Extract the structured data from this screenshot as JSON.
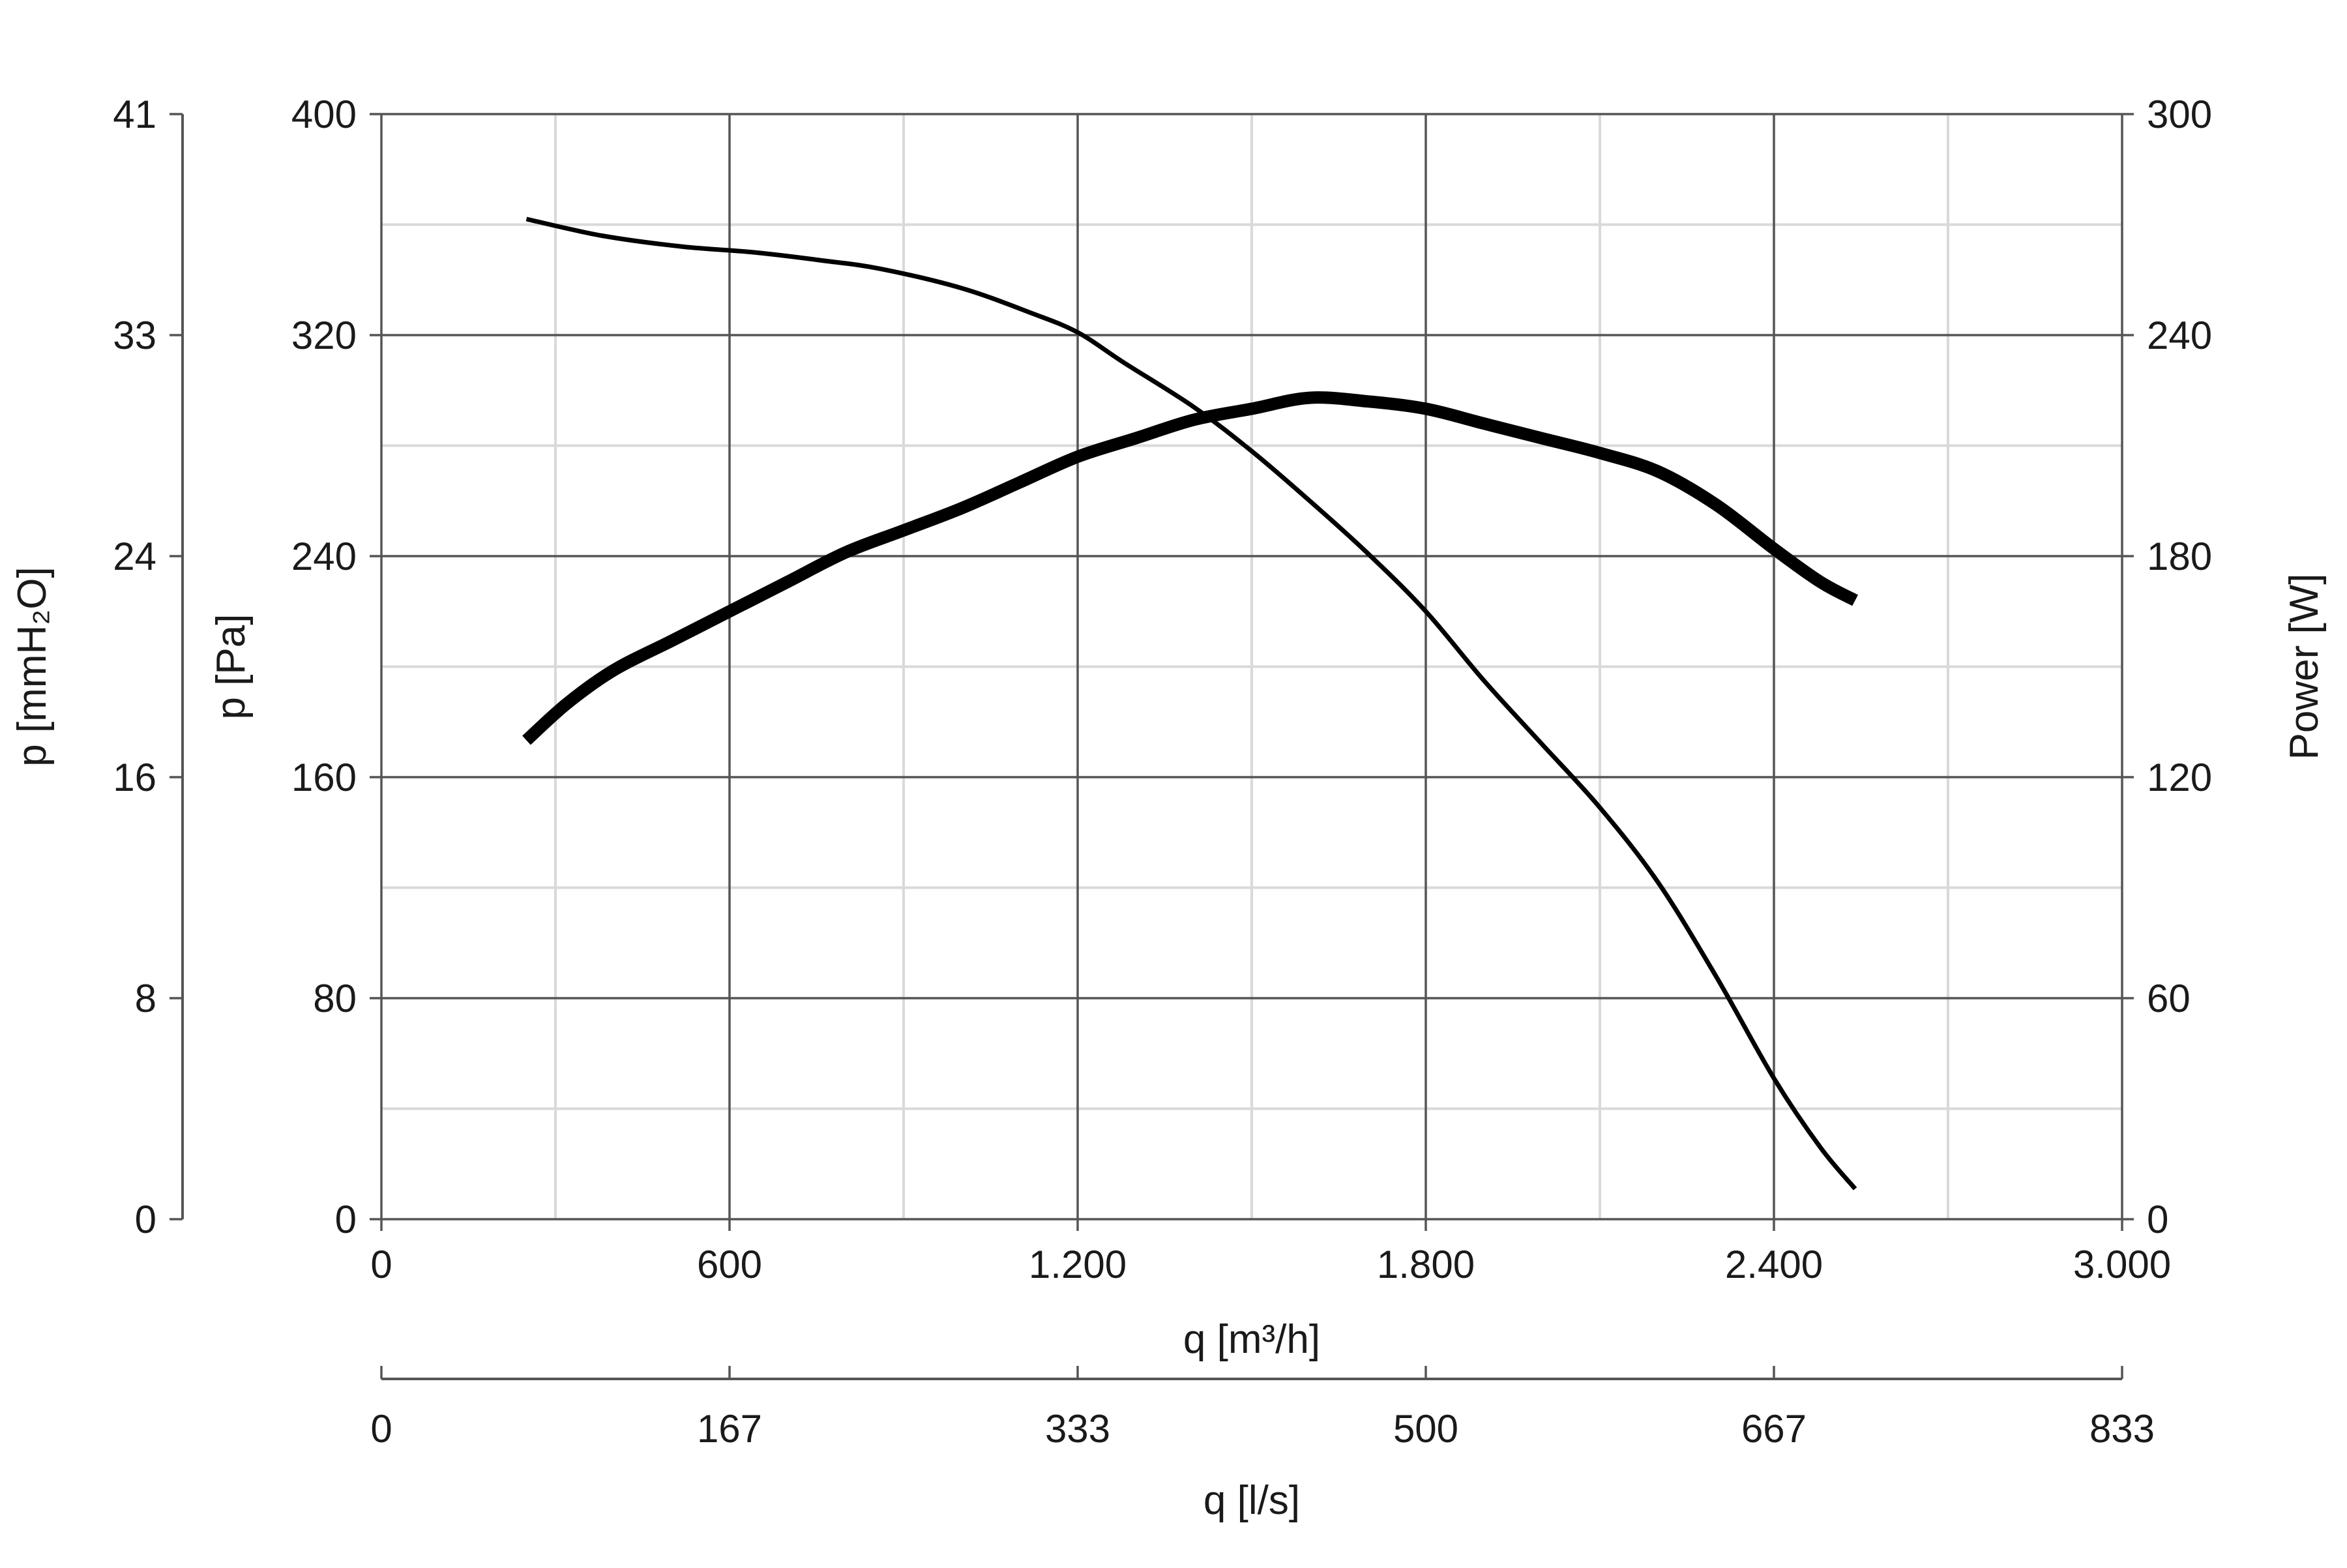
{
  "chart_data": {
    "type": "line",
    "title": "",
    "xlabel": "q [m³/h]",
    "xlim": [
      0,
      3000
    ],
    "xticks": [
      0,
      600,
      1200,
      1800,
      2400,
      3000
    ],
    "xtick_labels": [
      "0",
      "600",
      "1.200",
      "1.800",
      "2.400",
      "3.000"
    ],
    "x2label": "q [l/s]",
    "x2lim": [
      0,
      833
    ],
    "x2tick_labels": [
      "0",
      "167",
      "333",
      "500",
      "667",
      "833"
    ],
    "ylabel": "p [Pa]",
    "ylim": [
      0,
      400
    ],
    "yticks": [
      0,
      80,
      160,
      240,
      320,
      400
    ],
    "ytick_labels": [
      "0",
      "80",
      "160",
      "240",
      "320",
      "400"
    ],
    "y2label": "p [mmH₂O]",
    "y2lim": [
      0,
      41
    ],
    "y2tick_labels": [
      "0",
      "8",
      "16",
      "24",
      "33",
      "41"
    ],
    "y3label": "Power [W]",
    "y3lim": [
      0,
      300
    ],
    "y3ticks": [
      0,
      60,
      120,
      180,
      240,
      300
    ],
    "y3tick_labels": [
      "0",
      "60",
      "120",
      "180",
      "240",
      "300"
    ],
    "grid": true,
    "series": [
      {
        "axis": "left",
        "color": "#000000",
        "style": "thin",
        "x": [
          250,
          380,
          520,
          640,
          760,
          860,
          1000,
          1120,
          1200,
          1280,
          1400,
          1500,
          1600,
          1700,
          1800,
          1900,
          2000,
          2100,
          2200,
          2300,
          2400,
          2480,
          2540
        ],
        "y": [
          362,
          356,
          352,
          350,
          347,
          344,
          337,
          328,
          321,
          310,
          294,
          278,
          260,
          241,
          220,
          195,
          172,
          149,
          122,
          88,
          51,
          26,
          11
        ]
      },
      {
        "axis": "right",
        "color": "#000000",
        "style": "thick",
        "x": [
          250,
          320,
          400,
          500,
          600,
          700,
          800,
          900,
          1000,
          1100,
          1200,
          1300,
          1400,
          1500,
          1600,
          1700,
          1800,
          1900,
          2000,
          2100,
          2200,
          2300,
          2400,
          2480,
          2540
        ],
        "y": [
          130,
          140,
          149,
          157,
          165,
          173,
          181,
          187,
          193,
          200,
          207,
          212,
          217,
          220,
          223,
          222,
          220,
          216,
          212,
          208,
          203,
          194,
          182,
          173,
          168
        ]
      }
    ]
  }
}
